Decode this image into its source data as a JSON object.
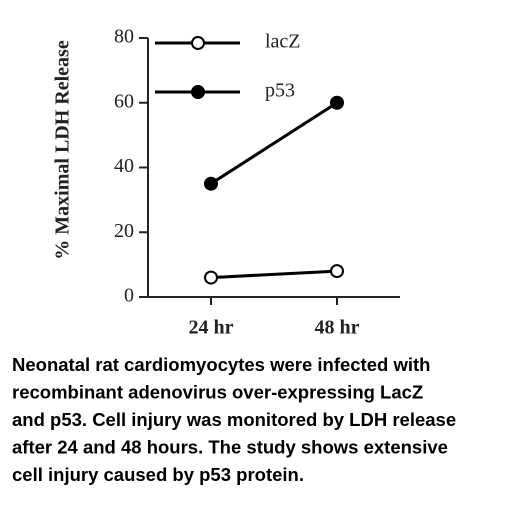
{
  "chart_data": {
    "type": "line",
    "ylabel": "% Maximal LDH Release",
    "categories": [
      "24 hr",
      "48 hr"
    ],
    "series": [
      {
        "name": "lacZ",
        "color": "#000000",
        "marker_fill": "#ffffff",
        "values": [
          6,
          8
        ]
      },
      {
        "name": "p53",
        "color": "#000000",
        "marker_fill": "#000000",
        "values": [
          35,
          60
        ]
      }
    ],
    "ylim": [
      0,
      80
    ],
    "yticks": [
      0,
      20,
      40,
      60,
      80
    ],
    "grid": false,
    "legend": "upper left"
  },
  "caption": [
    "Neonatal rat cardiomyocytes were infected with",
    "recombinant adenovirus over-expressing LacZ",
    "and p53. Cell injury was monitored by LDH release",
    "after 24 and 48 hours. The study shows extensive",
    "cell injury caused by p53 protein."
  ]
}
